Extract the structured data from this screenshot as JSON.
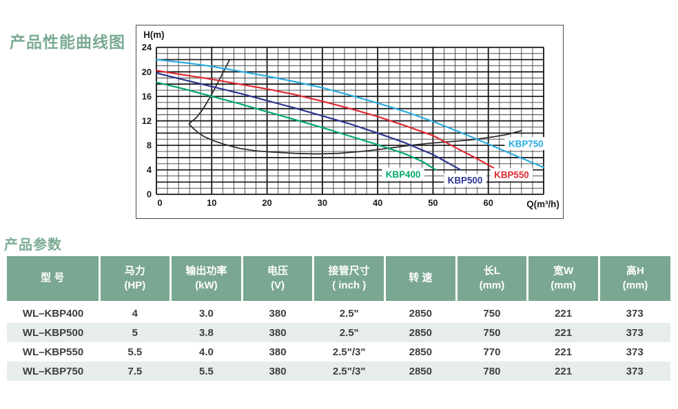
{
  "page": {
    "chart_title": "产品性能曲线图",
    "table_title": "产品参数"
  },
  "colors": {
    "section_title_green": "#7bab93",
    "table_header_green": "#7aa791",
    "table_alt_row": "#e7eeea",
    "grid_minor": "#3a3a3a",
    "grid_major": "#111111",
    "axis_text": "#1a1a1a"
  },
  "chart_data": {
    "type": "line",
    "title": "产品性能曲线图",
    "xlabel": "Q(m³/h)",
    "ylabel": "H(m)",
    "x_max": 70,
    "y_max": 24,
    "x_tick_step": 10,
    "x_tick_label_max": 60,
    "y_tick_step": 4,
    "x_minor_step": 2,
    "y_minor_step": 1,
    "x_major_step": 10,
    "y_major_step": 2,
    "grid": true,
    "legend_position": "labels-on-plot",
    "series": [
      {
        "name": "operating-range-boundary",
        "label": "",
        "color": "#2b2b2b",
        "width": 1.8,
        "points": [
          [
            13.2,
            21.9
          ],
          [
            12.0,
            19.8
          ],
          [
            10.8,
            17.7
          ],
          [
            9.6,
            15.7
          ],
          [
            8.4,
            13.9
          ],
          [
            7.3,
            12.6
          ],
          [
            6.4,
            11.9
          ],
          [
            5.9,
            11.5
          ],
          [
            6.5,
            10.9
          ],
          [
            7.5,
            10.1
          ],
          [
            8.7,
            9.4
          ],
          [
            10.5,
            8.7
          ],
          [
            12.5,
            8.1
          ],
          [
            15,
            7.5
          ],
          [
            18,
            7.1
          ],
          [
            21,
            6.9
          ],
          [
            25,
            6.7
          ],
          [
            29,
            6.6
          ],
          [
            33,
            6.7
          ],
          [
            37,
            7.0
          ],
          [
            41,
            7.4
          ],
          [
            45,
            7.9
          ],
          [
            49,
            8.3
          ],
          [
            53,
            8.6
          ],
          [
            57,
            8.9
          ],
          [
            61,
            9.4
          ],
          [
            63.5,
            9.8
          ],
          [
            66,
            10.4
          ]
        ]
      },
      {
        "name": "KBP400",
        "label": "KBP400",
        "color": "#00a968",
        "width": 2.2,
        "label_pos": [
          44.6,
          3.3
        ],
        "points": [
          [
            0,
            18.3
          ],
          [
            5,
            17.2
          ],
          [
            10,
            16.0
          ],
          [
            15,
            14.8
          ],
          [
            20,
            13.5
          ],
          [
            25,
            12.2
          ],
          [
            30,
            10.9
          ],
          [
            35,
            9.5
          ],
          [
            40,
            8.1
          ],
          [
            45,
            6.6
          ],
          [
            48,
            5.4
          ],
          [
            50.5,
            4.0
          ]
        ]
      },
      {
        "name": "KBP500",
        "label": "KBP500",
        "color": "#2b3390",
        "width": 2.2,
        "label_pos": [
          55.8,
          2.3
        ],
        "points": [
          [
            0,
            19.8
          ],
          [
            5,
            18.7
          ],
          [
            10,
            17.6
          ],
          [
            15,
            16.5
          ],
          [
            20,
            15.3
          ],
          [
            25,
            14.1
          ],
          [
            30,
            12.8
          ],
          [
            35,
            11.5
          ],
          [
            40,
            10.0
          ],
          [
            45,
            8.4
          ],
          [
            50,
            6.5
          ],
          [
            55,
            4.0
          ]
        ]
      },
      {
        "name": "KBP550",
        "label": "KBP550",
        "color": "#e0282e",
        "width": 2.2,
        "label_pos": [
          64.2,
          3.2
        ],
        "points": [
          [
            0,
            20.2
          ],
          [
            5,
            19.5
          ],
          [
            10,
            18.8
          ],
          [
            15,
            18.0
          ],
          [
            20,
            17.2
          ],
          [
            25,
            16.3
          ],
          [
            30,
            15.2
          ],
          [
            35,
            14.0
          ],
          [
            40,
            12.7
          ],
          [
            45,
            11.2
          ],
          [
            50,
            9.6
          ],
          [
            55,
            7.2
          ],
          [
            58,
            5.8
          ],
          [
            61,
            4.3
          ]
        ]
      },
      {
        "name": "KBP750",
        "label": "KBP750",
        "color": "#29abe2",
        "width": 2.2,
        "label_pos": [
          66.8,
          8.3
        ],
        "points": [
          [
            0,
            22.0
          ],
          [
            5,
            21.5
          ],
          [
            10,
            20.9
          ],
          [
            15,
            20.1
          ],
          [
            20,
            19.3
          ],
          [
            25,
            18.4
          ],
          [
            30,
            17.4
          ],
          [
            35,
            16.2
          ],
          [
            40,
            14.9
          ],
          [
            45,
            13.5
          ],
          [
            50,
            11.9
          ],
          [
            55,
            10.1
          ],
          [
            60,
            8.2
          ],
          [
            65,
            6.3
          ],
          [
            70,
            4.4
          ]
        ]
      }
    ]
  },
  "table": {
    "headers": [
      {
        "line1": "型  号",
        "line2": ""
      },
      {
        "line1": "马力",
        "line2": "(HP)"
      },
      {
        "line1": "输出功率",
        "line2": "(kW)"
      },
      {
        "line1": "电压",
        "line2": "(V)"
      },
      {
        "line1": "接管尺寸",
        "line2": "( inch )"
      },
      {
        "line1": "转 速",
        "line2": ""
      },
      {
        "line1": "长L",
        "line2": "(mm)"
      },
      {
        "line1": "宽W",
        "line2": "(mm)"
      },
      {
        "line1": "高H",
        "line2": "(mm)"
      }
    ],
    "rows": [
      [
        "WL–KBP400",
        "4",
        "3.0",
        "380",
        "2.5\"",
        "2850",
        "750",
        "221",
        "373"
      ],
      [
        "WL–KBP500",
        "5",
        "3.8",
        "380",
        "2.5\"",
        "2850",
        "750",
        "221",
        "373"
      ],
      [
        "WL–KBP550",
        "5.5",
        "4.0",
        "380",
        "2.5\"/3\"",
        "2850",
        "770",
        "221",
        "373"
      ],
      [
        "WL–KBP750",
        "7.5",
        "5.5",
        "380",
        "2.5\"/3\"",
        "2850",
        "780",
        "221",
        "373"
      ]
    ]
  }
}
